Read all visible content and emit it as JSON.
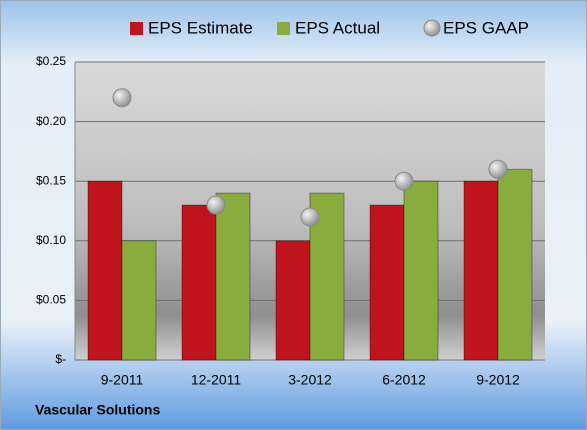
{
  "chart_data": {
    "type": "bar",
    "footer": "Vascular Solutions",
    "categories": [
      "9-2011",
      "12-2011",
      "3-2012",
      "6-2012",
      "9-2012"
    ],
    "series": [
      {
        "name": "EPS Estimate",
        "color": "#c0141c",
        "values": [
          0.15,
          0.13,
          0.1,
          0.13,
          0.15
        ]
      },
      {
        "name": "EPS Actual",
        "color": "#8aac3e",
        "values": [
          0.1,
          0.14,
          0.14,
          0.15,
          0.16
        ]
      },
      {
        "name": "EPS GAAP",
        "color": "#a8a8a8",
        "type": "scatter",
        "values": [
          0.22,
          0.13,
          0.12,
          0.15,
          0.16
        ]
      }
    ],
    "ylim": [
      0,
      0.25
    ],
    "yticks": [
      {
        "value": 0,
        "label": "$-"
      },
      {
        "value": 0.05,
        "label": "$0.05"
      },
      {
        "value": 0.1,
        "label": "$0.10"
      },
      {
        "value": 0.15,
        "label": "$0.15"
      },
      {
        "value": 0.2,
        "label": "$0.20"
      },
      {
        "value": 0.25,
        "label": "$0.25"
      }
    ],
    "grid": true
  }
}
